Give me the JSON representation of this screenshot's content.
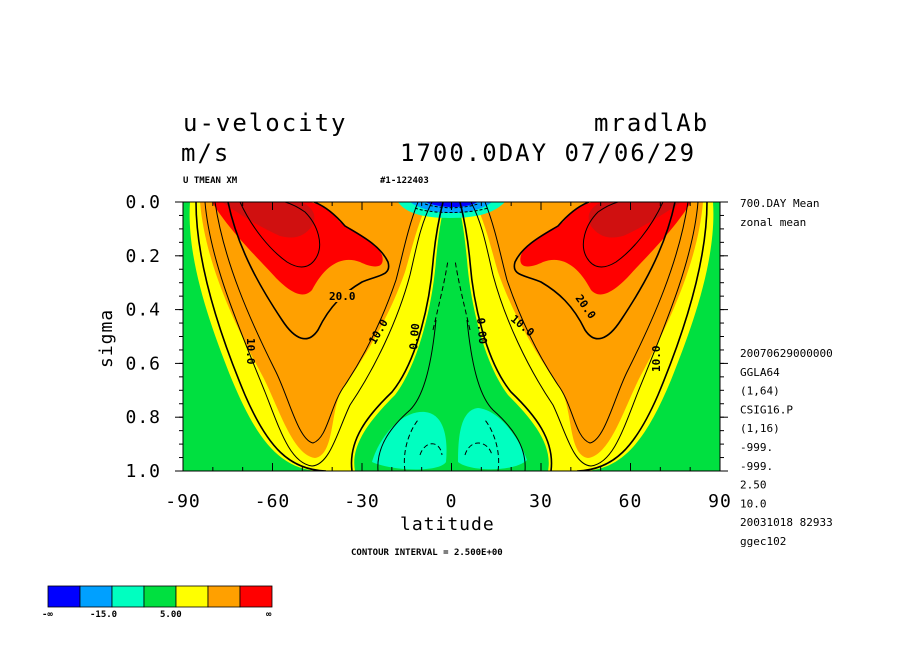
{
  "header": {
    "title_left": "u-velocity",
    "units": "m/s",
    "title_right": "mradlAb",
    "date_line": "1700.0DAY 07/06/29",
    "sub_left": "U TMEAN XM",
    "sub_mid": "#1-122403"
  },
  "right_notes": {
    "top": [
      "700.DAY Mean",
      "zonal mean"
    ],
    "meta": [
      "20070629000000",
      "GGLA64",
      "(1,64)",
      "CSIG16.P",
      "(1,16)",
      "-999.",
      "-999.",
      "2.50",
      "10.0",
      "20031018  82933",
      "ggec102"
    ]
  },
  "contour_interval": "CONTOUR INTERVAL = 2.500E+00",
  "contour_labels": [
    "20.0",
    "10.0",
    "10.0",
    "0.00",
    "0.00",
    "10.0",
    "20.0",
    "10.0"
  ],
  "colorbar": {
    "colors": [
      "#0000ff",
      "#00a0ff",
      "#00ffc0",
      "#00e040",
      "#ffff00",
      "#ffa000",
      "#ff0000"
    ],
    "labels": [
      "-∞",
      "-15.0",
      "5.00",
      "∞"
    ]
  },
  "chart_data": {
    "type": "contour",
    "title": "u-velocity",
    "units": "m/s",
    "xlabel": "latitude",
    "ylabel": "sigma",
    "xlim": [
      -90,
      90
    ],
    "ylim": [
      1.0,
      0.0
    ],
    "xticks": [
      -90,
      -60,
      -30,
      0,
      30,
      60,
      90
    ],
    "xtick_labels": [
      "-90",
      "-60",
      "-30",
      "0",
      "30",
      "60",
      "90"
    ],
    "yticks": [
      0.0,
      0.2,
      0.4,
      0.6,
      0.8,
      1.0
    ],
    "ytick_labels": [
      "0.0",
      "0.2",
      "0.4",
      "0.6",
      "0.8",
      "1.0"
    ],
    "contour_interval": 2.5,
    "jets": [
      {
        "lat": -52,
        "sigma_center": 0.22,
        "max_speed": 37
      },
      {
        "lat": 52,
        "sigma_center": 0.22,
        "max_speed": 37
      }
    ],
    "easterly_regions": [
      {
        "lat_range": [
          -20,
          -2
        ],
        "sigma_range": [
          0.78,
          0.98
        ],
        "min_speed": -5
      },
      {
        "lat_range": [
          2,
          25
        ],
        "sigma_range": [
          0.78,
          0.98
        ],
        "min_speed": -5
      },
      {
        "lat_range": [
          -18,
          18
        ],
        "sigma_range": [
          0.0,
          0.06
        ],
        "min_speed": -20
      }
    ],
    "color_bounds": [
      -15.0,
      5.0
    ]
  }
}
